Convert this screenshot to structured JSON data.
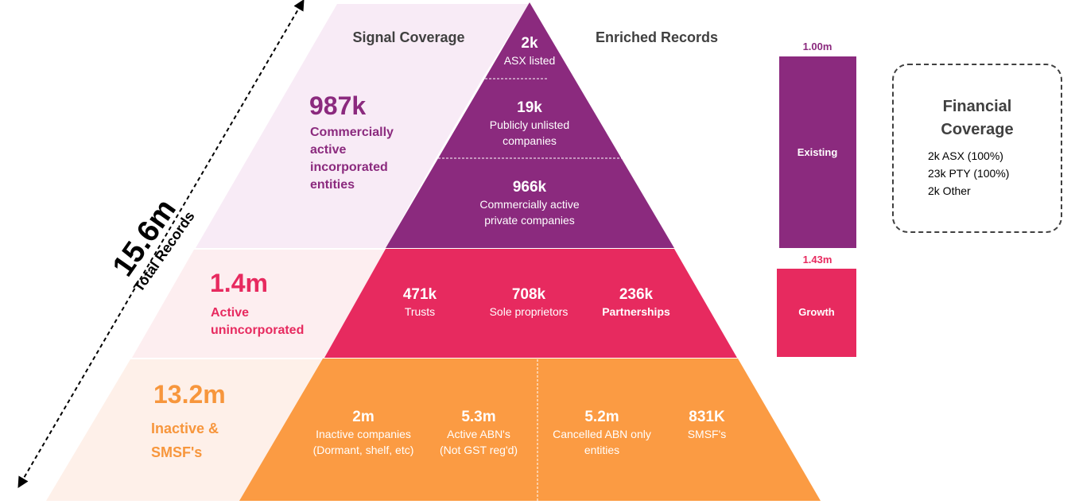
{
  "headers": {
    "signal_coverage": "Signal Coverage",
    "enriched_records": "Enriched Records"
  },
  "total": {
    "value": "15.6m",
    "label": "Total Records"
  },
  "tiers": {
    "incorporated": {
      "value": "987k",
      "label_lines": [
        "Commercially",
        "active",
        "incorporated",
        "entities"
      ],
      "segments": [
        {
          "value": "2k",
          "lines": [
            "ASX listed"
          ]
        },
        {
          "value": "19k",
          "lines": [
            "Publicly unlisted",
            "companies"
          ]
        },
        {
          "value": "966k",
          "lines": [
            "Commercially active",
            "private companies"
          ]
        }
      ]
    },
    "unincorporated": {
      "value": "1.4m",
      "label_lines": [
        "Active",
        "unincorporated"
      ],
      "segments": [
        {
          "value": "471k",
          "lines": [
            "Trusts"
          ]
        },
        {
          "value": "708k",
          "lines": [
            "Sole proprietors"
          ]
        },
        {
          "value": "236k",
          "lines": [
            "Partnerships"
          ]
        }
      ]
    },
    "inactive": {
      "value": "13.2m",
      "label_lines": [
        "Inactive &",
        "SMSF's"
      ],
      "segments": [
        {
          "value": "2m",
          "lines": [
            "Inactive companies",
            "(Dormant, shelf, etc)"
          ]
        },
        {
          "value": "5.3m",
          "lines": [
            "Active ABN's",
            "(Not GST reg'd)"
          ]
        },
        {
          "value": "5.2m",
          "lines": [
            "Cancelled ABN only",
            "entities"
          ]
        },
        {
          "value": "831K",
          "lines": [
            "SMSF's"
          ]
        }
      ]
    }
  },
  "bars": {
    "existing": {
      "value": "1.00m",
      "label": "Existing"
    },
    "growth": {
      "value": "1.43m",
      "label": "Growth"
    }
  },
  "financial_coverage": {
    "title_lines": [
      "Financial",
      "Coverage"
    ],
    "items": [
      "2k ASX (100%)",
      "23k PTY (100%)",
      "2k Other"
    ]
  },
  "colors": {
    "purple": "#8b2a7e",
    "pink": "#e72a5f",
    "orange": "#f7963c",
    "light_purple": "#f8ebf6",
    "light_pink": "#fdeef0",
    "light_orange": "#fef0e9"
  }
}
